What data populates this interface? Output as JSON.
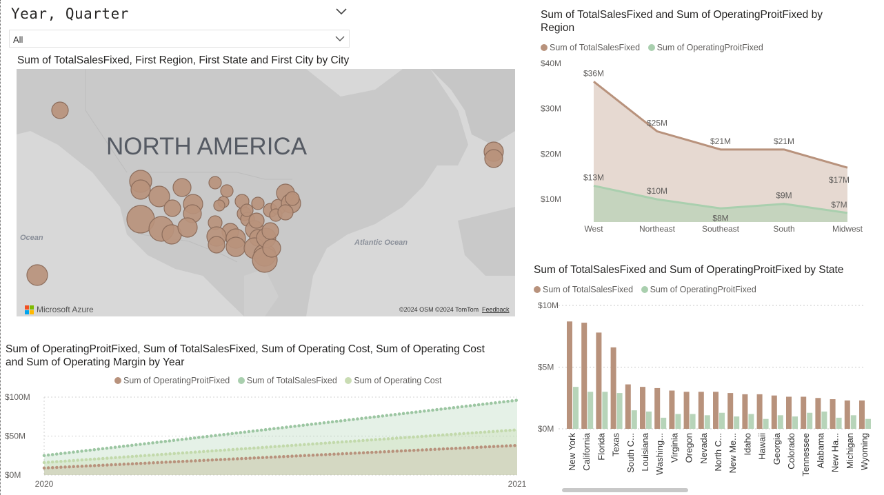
{
  "slicer": {
    "title": "Year, Quarter",
    "value": "All"
  },
  "map_visual": {
    "title": "Sum of TotalSalesFixed, First Region, First State and First City by City",
    "continent_label": "NORTH AMERICA",
    "ocean_left": "Ocean",
    "ocean_atlantic": "Atlantic Ocean",
    "brand": "Microsoft Azure",
    "attribution": "©2024 OSM  ©2024 TomTom",
    "feedback": "Feedback",
    "bubble_color": "#b8927c"
  },
  "region_chart": {
    "title_line1": "Sum of TotalSalesFixed and Sum of OperatingProitFixed by",
    "title_line2": "Region",
    "legend": [
      "Sum of TotalSalesFixed",
      "Sum of OperatingProitFixed"
    ],
    "colors": {
      "sales": "#b8927c",
      "profit": "#a9cfae"
    },
    "chart_data": {
      "type": "area",
      "categories": [
        "West",
        "Northeast",
        "Southeast",
        "South",
        "Midwest"
      ],
      "series": [
        {
          "name": "Sum of TotalSalesFixed",
          "values": [
            36,
            25,
            21,
            21,
            17
          ],
          "labels": [
            "$36M",
            "$25M",
            "$21M",
            "$21M",
            "$17M"
          ]
        },
        {
          "name": "Sum of OperatingProitFixed",
          "values": [
            13,
            10,
            8,
            9,
            7
          ],
          "labels": [
            "$13M",
            "$10M",
            "$8M",
            "$9M",
            "$7M"
          ]
        }
      ],
      "y_ticks": [
        "$10M",
        "$20M",
        "$30M",
        "$40M"
      ],
      "ylim": [
        5,
        40
      ]
    }
  },
  "state_chart": {
    "title": "Sum of TotalSalesFixed and Sum of OperatingProitFixed by State",
    "legend": [
      "Sum of TotalSalesFixed",
      "Sum of OperatingProitFixed"
    ],
    "chart_data": {
      "type": "bar",
      "categories": [
        "New York",
        "California",
        "Florida",
        "Texas",
        "South C...",
        "Louisiana",
        "Washing...",
        "Virginia",
        "Oregon",
        "Nevada",
        "North C...",
        "New Me...",
        "Idaho",
        "Hawaii",
        "Georgia",
        "Colorado",
        "Tennessee",
        "Alabama",
        "New Ha...",
        "Michigan",
        "Wyoming"
      ],
      "series": [
        {
          "name": "Sum of TotalSalesFixed",
          "values": [
            8.7,
            8.6,
            7.8,
            6.6,
            3.6,
            3.4,
            3.3,
            3.1,
            3.0,
            3.0,
            3.0,
            2.9,
            2.8,
            2.8,
            2.7,
            2.6,
            2.6,
            2.5,
            2.4,
            2.3,
            2.3
          ]
        },
        {
          "name": "Sum of OperatingProitFixed",
          "values": [
            3.4,
            3.0,
            3.0,
            2.9,
            1.5,
            1.4,
            0.9,
            1.2,
            1.2,
            1.1,
            1.3,
            1.0,
            1.2,
            0.8,
            1.1,
            1.0,
            1.3,
            1.4,
            0.9,
            1.1,
            0.8
          ]
        }
      ],
      "y_ticks": [
        "$0M",
        "$5M",
        "$10M"
      ],
      "ylim": [
        0,
        10
      ]
    }
  },
  "year_chart": {
    "title_line1": "Sum of OperatingProitFixed, Sum of TotalSalesFixed, Sum of Operating Cost, Sum of Operating Cost",
    "title_line2": "and Sum of Operating Margin by Year",
    "legend": [
      "Sum of OperatingProitFixed",
      "Sum of TotalSalesFixed",
      "Sum of Operating Cost"
    ],
    "colors": {
      "profit": "#b8927c",
      "sales": "#a9cfae",
      "cost": "#c9dcb3"
    },
    "chart_data": {
      "type": "area",
      "x": [
        "2020",
        "2021"
      ],
      "series": [
        {
          "name": "Sum of TotalSalesFixed",
          "values": [
            25,
            96
          ]
        },
        {
          "name": "Sum of Operating Cost",
          "values": [
            16,
            58
          ]
        },
        {
          "name": "Sum of OperatingProitFixed",
          "values": [
            9,
            38
          ]
        }
      ],
      "y_ticks": [
        "$0M",
        "$50M",
        "$100M"
      ],
      "ylim": [
        0,
        100
      ]
    }
  }
}
